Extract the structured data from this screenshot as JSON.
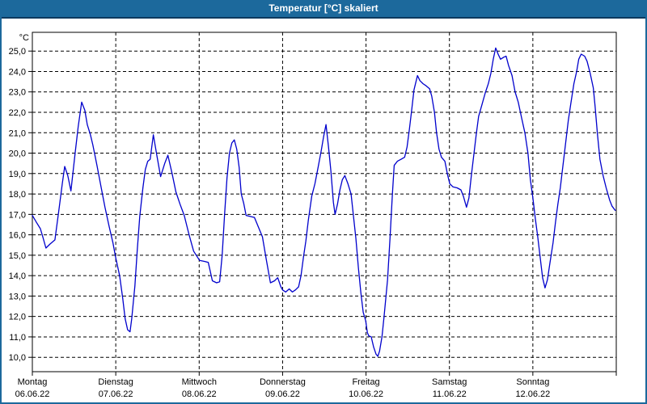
{
  "window": {
    "title": "Temperatur [°C] skaliert"
  },
  "chart_data": {
    "type": "line",
    "title": "Temperatur [°C] skaliert",
    "y_axis": {
      "unit_label": "°C",
      "min": 10.0,
      "max": 25.0,
      "tick_step": 1.0,
      "decimal_separator": ",",
      "grid": "dashed"
    },
    "x_axis": {
      "hours_range": [
        0,
        168
      ],
      "grid": "dashed vertical lines at day boundaries",
      "days": [
        {
          "name": "Montag",
          "date": "06.06.22"
        },
        {
          "name": "Dienstag",
          "date": "07.06.22"
        },
        {
          "name": "Mittwoch",
          "date": "08.06.22"
        },
        {
          "name": "Donnerstag",
          "date": "09.06.22"
        },
        {
          "name": "Freitag",
          "date": "10.06.22"
        },
        {
          "name": "Samstag",
          "date": "11.06.22"
        },
        {
          "name": "Sonntag",
          "date": "12.06.22"
        }
      ]
    },
    "colors": {
      "line": "#0000cc",
      "grid": "#000000",
      "titlebar": "#1c699c",
      "frame": "#1c699c"
    },
    "legend": "none",
    "series": [
      {
        "name": "Temperatur",
        "unit": "°C",
        "points": [
          [
            0,
            16.95
          ],
          [
            1.2,
            16.6
          ],
          [
            2.3,
            16.3
          ],
          [
            3.0,
            15.9
          ],
          [
            3.9,
            15.35
          ],
          [
            5.1,
            15.55
          ],
          [
            6.5,
            15.75
          ],
          [
            7.7,
            17.3
          ],
          [
            8.6,
            18.5
          ],
          [
            9.3,
            19.35
          ],
          [
            10.2,
            18.9
          ],
          [
            11.1,
            18.15
          ],
          [
            12.3,
            20.0
          ],
          [
            13.2,
            21.3
          ],
          [
            14.2,
            22.5
          ],
          [
            15.1,
            22.1
          ],
          [
            15.8,
            21.4
          ],
          [
            16.7,
            20.9
          ],
          [
            17.4,
            20.4
          ],
          [
            18.6,
            19.4
          ],
          [
            19.7,
            18.4
          ],
          [
            20.9,
            17.35
          ],
          [
            22.1,
            16.4
          ],
          [
            23.2,
            15.6
          ],
          [
            23.9,
            14.95
          ],
          [
            25.1,
            14.0
          ],
          [
            26.0,
            12.9
          ],
          [
            26.7,
            11.9
          ],
          [
            27.4,
            11.35
          ],
          [
            28.1,
            11.25
          ],
          [
            28.6,
            11.9
          ],
          [
            29.5,
            13.5
          ],
          [
            30.2,
            15.3
          ],
          [
            30.9,
            16.9
          ],
          [
            31.8,
            18.3
          ],
          [
            32.5,
            19.2
          ],
          [
            33.2,
            19.6
          ],
          [
            33.9,
            19.7
          ],
          [
            34.8,
            20.9
          ],
          [
            35.8,
            19.9
          ],
          [
            36.9,
            18.85
          ],
          [
            38.1,
            19.5
          ],
          [
            39.0,
            19.9
          ],
          [
            40.2,
            19.0
          ],
          [
            41.3,
            18.1
          ],
          [
            42.5,
            17.5
          ],
          [
            43.7,
            16.95
          ],
          [
            45.1,
            16.0
          ],
          [
            46.4,
            15.2
          ],
          [
            48.1,
            14.75
          ],
          [
            49.5,
            14.7
          ],
          [
            50.6,
            14.65
          ],
          [
            51.8,
            13.75
          ],
          [
            53.0,
            13.65
          ],
          [
            53.9,
            13.7
          ],
          [
            54.6,
            15.0
          ],
          [
            55.3,
            17.0
          ],
          [
            56.0,
            18.8
          ],
          [
            56.7,
            20.0
          ],
          [
            57.4,
            20.5
          ],
          [
            58.1,
            20.65
          ],
          [
            58.8,
            20.2
          ],
          [
            59.5,
            19.3
          ],
          [
            60.1,
            18.0
          ],
          [
            60.8,
            17.55
          ],
          [
            61.5,
            16.95
          ],
          [
            62.7,
            16.9
          ],
          [
            63.9,
            16.85
          ],
          [
            65.0,
            16.4
          ],
          [
            66.2,
            15.9
          ],
          [
            67.3,
            14.8
          ],
          [
            68.5,
            13.65
          ],
          [
            69.7,
            13.75
          ],
          [
            70.6,
            13.9
          ],
          [
            71.5,
            13.45
          ],
          [
            72.0,
            13.3
          ],
          [
            72.9,
            13.2
          ],
          [
            73.9,
            13.35
          ],
          [
            74.8,
            13.2
          ],
          [
            75.7,
            13.3
          ],
          [
            76.6,
            13.45
          ],
          [
            77.3,
            14.0
          ],
          [
            78.0,
            14.9
          ],
          [
            78.7,
            15.7
          ],
          [
            79.4,
            16.7
          ],
          [
            80.4,
            17.9
          ],
          [
            81.3,
            18.5
          ],
          [
            82.2,
            19.3
          ],
          [
            83.1,
            20.1
          ],
          [
            83.8,
            20.8
          ],
          [
            84.5,
            21.4
          ],
          [
            85.2,
            20.3
          ],
          [
            85.9,
            19.1
          ],
          [
            86.6,
            17.6
          ],
          [
            87.1,
            17.0
          ],
          [
            87.8,
            17.5
          ],
          [
            88.5,
            18.2
          ],
          [
            89.2,
            18.7
          ],
          [
            89.9,
            18.9
          ],
          [
            90.8,
            18.5
          ],
          [
            91.7,
            18.0
          ],
          [
            92.4,
            16.9
          ],
          [
            93.1,
            15.8
          ],
          [
            93.8,
            14.4
          ],
          [
            94.5,
            13.2
          ],
          [
            95.2,
            12.2
          ],
          [
            95.9,
            11.8
          ],
          [
            96.4,
            11.2
          ],
          [
            96.8,
            11.05
          ],
          [
            97.5,
            11.0
          ],
          [
            98.2,
            10.5
          ],
          [
            98.9,
            10.15
          ],
          [
            99.4,
            10.05
          ],
          [
            99.9,
            10.3
          ],
          [
            100.6,
            11.0
          ],
          [
            101.2,
            12.0
          ],
          [
            102.2,
            13.8
          ],
          [
            102.9,
            15.8
          ],
          [
            103.6,
            18.0
          ],
          [
            104.1,
            19.4
          ],
          [
            105.0,
            19.6
          ],
          [
            106.1,
            19.7
          ],
          [
            107.1,
            19.8
          ],
          [
            107.8,
            20.3
          ],
          [
            108.5,
            21.2
          ],
          [
            109.2,
            22.2
          ],
          [
            109.8,
            23.1
          ],
          [
            110.8,
            23.8
          ],
          [
            111.5,
            23.55
          ],
          [
            112.4,
            23.4
          ],
          [
            113.3,
            23.3
          ],
          [
            114.3,
            23.15
          ],
          [
            114.9,
            22.8
          ],
          [
            115.7,
            22.0
          ],
          [
            116.3,
            21.0
          ],
          [
            117.0,
            20.2
          ],
          [
            117.7,
            19.8
          ],
          [
            118.7,
            19.6
          ],
          [
            119.4,
            19.0
          ],
          [
            120.1,
            18.5
          ],
          [
            121.0,
            18.35
          ],
          [
            122.2,
            18.3
          ],
          [
            123.3,
            18.2
          ],
          [
            124.0,
            17.9
          ],
          [
            124.9,
            17.35
          ],
          [
            125.6,
            17.8
          ],
          [
            126.3,
            18.9
          ],
          [
            127.0,
            19.9
          ],
          [
            127.7,
            20.9
          ],
          [
            128.4,
            21.8
          ],
          [
            129.4,
            22.4
          ],
          [
            130.3,
            22.95
          ],
          [
            131.2,
            23.4
          ],
          [
            131.9,
            23.9
          ],
          [
            132.6,
            24.6
          ],
          [
            133.3,
            25.15
          ],
          [
            134.0,
            24.85
          ],
          [
            134.7,
            24.6
          ],
          [
            135.6,
            24.7
          ],
          [
            136.3,
            24.75
          ],
          [
            137.0,
            24.3
          ],
          [
            138.0,
            23.8
          ],
          [
            138.9,
            23.0
          ],
          [
            139.8,
            22.5
          ],
          [
            140.8,
            21.7
          ],
          [
            141.7,
            21.0
          ],
          [
            142.6,
            20.0
          ],
          [
            143.3,
            18.7
          ],
          [
            144.0,
            17.8
          ],
          [
            144.7,
            16.8
          ],
          [
            145.4,
            15.9
          ],
          [
            146.1,
            14.9
          ],
          [
            146.8,
            13.9
          ],
          [
            147.5,
            13.4
          ],
          [
            148.2,
            13.8
          ],
          [
            148.9,
            14.6
          ],
          [
            149.8,
            15.6
          ],
          [
            150.5,
            16.6
          ],
          [
            151.2,
            17.5
          ],
          [
            151.9,
            18.3
          ],
          [
            152.6,
            19.3
          ],
          [
            153.3,
            20.3
          ],
          [
            154.2,
            21.6
          ],
          [
            154.9,
            22.4
          ],
          [
            155.8,
            23.4
          ],
          [
            156.6,
            24.0
          ],
          [
            157.2,
            24.6
          ],
          [
            157.9,
            24.85
          ],
          [
            158.9,
            24.75
          ],
          [
            159.6,
            24.5
          ],
          [
            160.5,
            23.9
          ],
          [
            161.4,
            23.2
          ],
          [
            161.9,
            22.3
          ],
          [
            162.6,
            20.9
          ],
          [
            163.3,
            19.7
          ],
          [
            164.2,
            18.9
          ],
          [
            165.1,
            18.3
          ],
          [
            166.1,
            17.7
          ],
          [
            166.8,
            17.4
          ],
          [
            167.7,
            17.2
          ]
        ]
      }
    ]
  }
}
